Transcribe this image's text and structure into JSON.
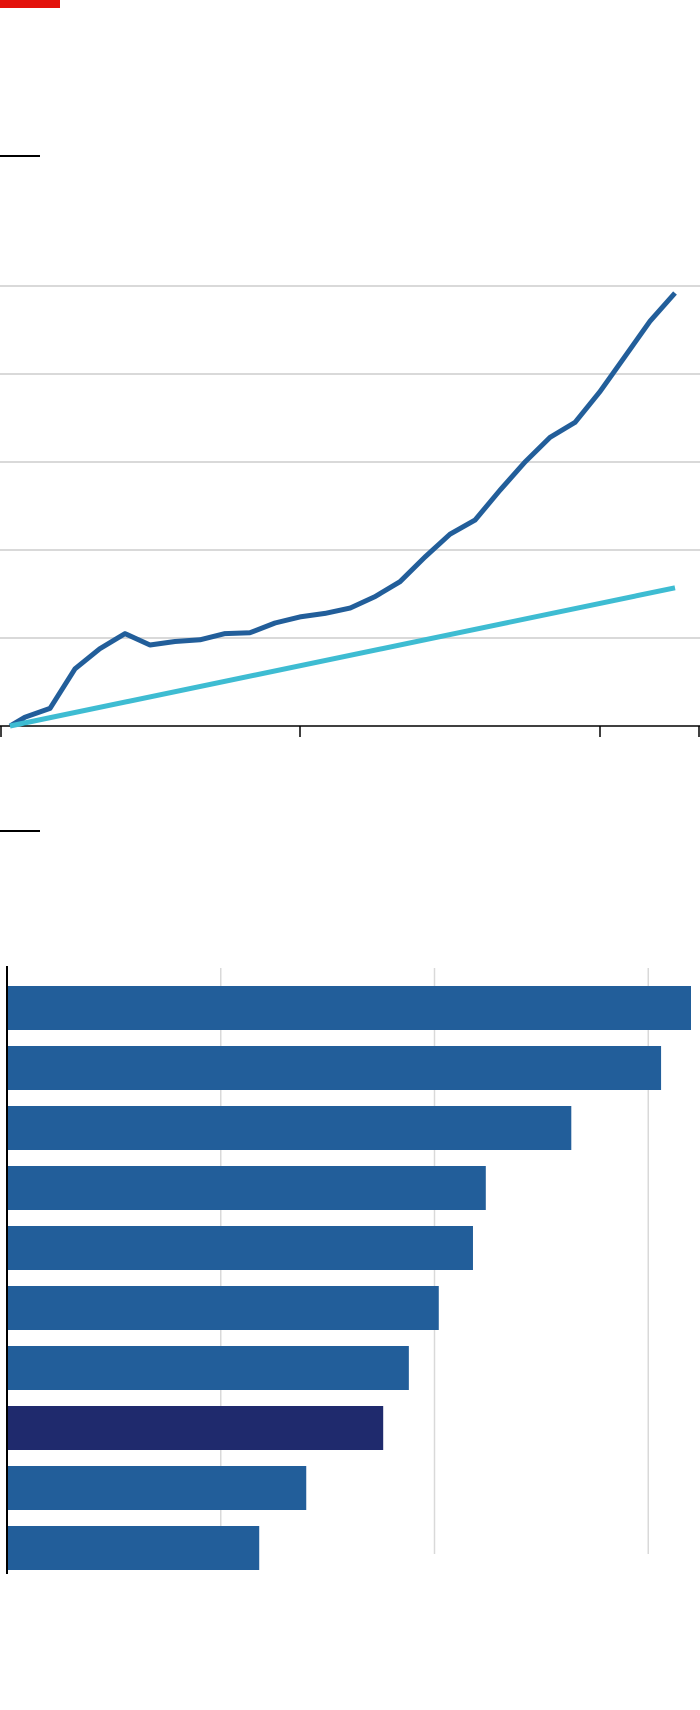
{
  "header": {
    "accent_color": "#e3120b"
  },
  "colors": {
    "series_primary": "#225e9a",
    "series_reference": "#3ebcd2",
    "bar": "#225e9a",
    "bar_highlight": "#1f2a6d",
    "grid": "#d9d9d9",
    "axis": "#000000"
  },
  "chart_data": [
    {
      "type": "line",
      "title": "",
      "xlabel": "",
      "ylabel": "",
      "grid": true,
      "xlim": [
        0,
        28
      ],
      "ylim": [
        0,
        5
      ],
      "x_ticks": [
        0,
        12,
        24,
        28
      ],
      "y_ticks": [
        0,
        1,
        2,
        3,
        4,
        5
      ],
      "series": [
        {
          "color": "#225e9a",
          "x": [
            0.4,
            1,
            2,
            3,
            4,
            5,
            6,
            7,
            8,
            9,
            10,
            11,
            12,
            13,
            14,
            15,
            16,
            17,
            18,
            19,
            20,
            21,
            22,
            23,
            24,
            25,
            26,
            27
          ],
          "y": [
            0,
            0.1,
            0.2,
            0.65,
            0.88,
            1.05,
            0.92,
            0.96,
            0.98,
            1.05,
            1.06,
            1.17,
            1.24,
            1.28,
            1.34,
            1.47,
            1.64,
            1.92,
            2.18,
            2.34,
            2.68,
            3.0,
            3.28,
            3.45,
            3.8,
            4.2,
            4.6,
            4.92
          ]
        },
        {
          "color": "#3ebcd2",
          "x": [
            0.4,
            27
          ],
          "y": [
            0,
            1.57
          ]
        }
      ]
    },
    {
      "type": "bar",
      "orientation": "horizontal",
      "title": "",
      "xlabel": "",
      "ylabel": "",
      "grid": true,
      "xlim": [
        0,
        3.2
      ],
      "x_ticks": [
        0,
        1,
        2,
        3
      ],
      "categories": [
        "",
        "",
        "",
        "",
        "",
        "",
        "",
        "",
        "",
        ""
      ],
      "values": [
        3.2,
        3.06,
        2.64,
        2.24,
        2.18,
        2.02,
        1.88,
        1.76,
        1.4,
        1.18
      ],
      "highlight_index": 7
    }
  ]
}
